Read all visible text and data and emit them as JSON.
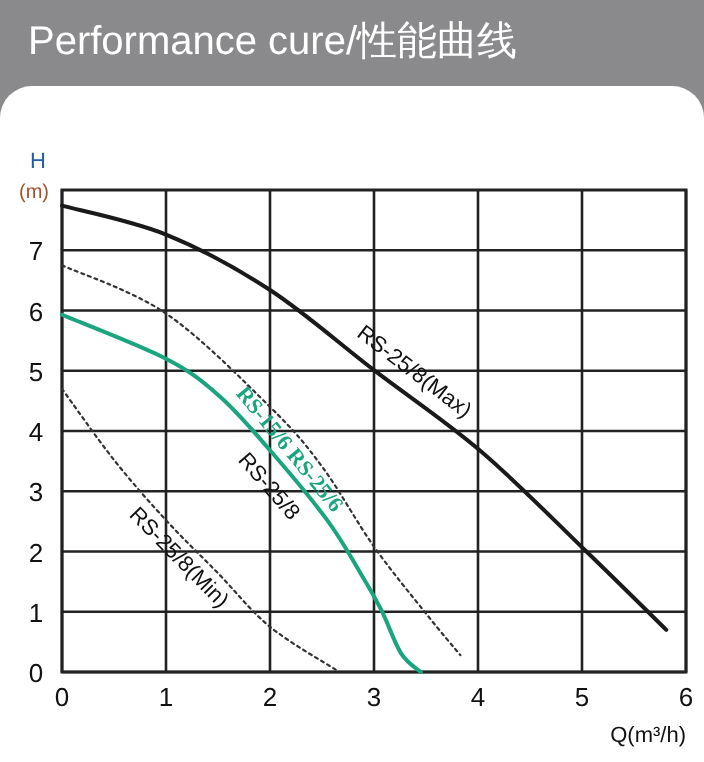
{
  "chart_data": {
    "type": "line",
    "title": "Performance cure/性能曲线",
    "xlabel": "Q(m³/h)",
    "ylabel": "H (m)",
    "xlim": [
      0,
      6
    ],
    "ylim": [
      0,
      8
    ],
    "xticks": [
      0,
      1,
      2,
      3,
      4,
      5,
      6
    ],
    "yticks": [
      0,
      1,
      2,
      3,
      4,
      5,
      6,
      7
    ],
    "grid": true,
    "marker": "none",
    "series": [
      {
        "name": "RS-25/8(Max)",
        "color": "#1a1a1a",
        "line_style": "solid",
        "x": [
          0,
          1,
          2,
          3,
          4.03,
          5.03,
          5.81
        ],
        "values": [
          7.74,
          7.26,
          6.34,
          5.01,
          3.66,
          2.02,
          0.7
        ]
      },
      {
        "name": "RS-15/6 RS-25/6",
        "color": "#1aa57f",
        "line_style": "solid",
        "x": [
          0,
          1,
          1.52,
          2,
          2.55,
          2.87,
          3.07,
          3.26,
          3.45
        ],
        "values": [
          5.93,
          5.2,
          4.57,
          3.68,
          2.52,
          1.64,
          1.03,
          0.31,
          0
        ]
      },
      {
        "name": "RS-25/8",
        "color": "#333333",
        "line_style": "dotted",
        "x": [
          0,
          1,
          2,
          2.5,
          3,
          3.5,
          3.83
        ],
        "values": [
          6.75,
          5.95,
          4.4,
          3.41,
          2.08,
          0.97,
          0.28
        ]
      },
      {
        "name": "RS-25/8(Min)",
        "color": "#333333",
        "line_style": "dotted",
        "x": [
          0,
          0.5,
          1,
          1.5,
          2,
          2.64
        ],
        "values": [
          4.7,
          3.52,
          2.52,
          1.64,
          0.75,
          0.03
        ]
      }
    ]
  }
}
